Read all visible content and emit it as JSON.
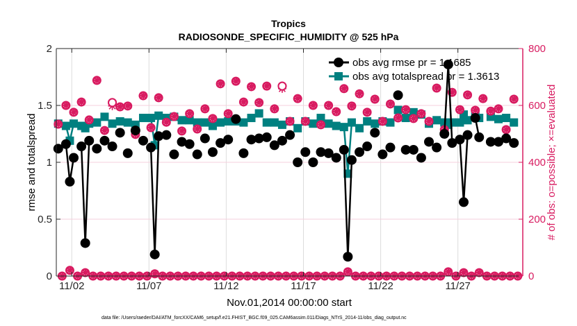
{
  "chart_data": {
    "type": "line",
    "title": "Tropics",
    "subtitle": "RADIOSONDE_SPECIFIC_HUMIDITY @ 525 hPa",
    "xlabel": "Nov.01,2014 00:00:00 start",
    "ylabel": "rmse and totalspread",
    "ylabel_right": "# of obs: o=possible; ×=evaluated",
    "footer": "data file: /Users/raeder/DAI/ATM_forcXX/CAM6_setup/f.e21.FHIST_BGC.f09_025.CAM6assim.011/Diags_NTrS_2014-11/obs_diag_output.nc",
    "xlim_days": [
      0,
      30.2
    ],
    "ylim": [
      0,
      2
    ],
    "ylim_right": [
      0,
      800
    ],
    "x_ticks": [
      {
        "day": 1,
        "label": "11/02"
      },
      {
        "day": 6,
        "label": "11/07"
      },
      {
        "day": 11,
        "label": "11/12"
      },
      {
        "day": 16,
        "label": "11/17"
      },
      {
        "day": 21,
        "label": "11/22"
      },
      {
        "day": 26,
        "label": "11/27"
      }
    ],
    "y_ticks": [
      {
        "v": 0,
        "label": "0"
      },
      {
        "v": 0.5,
        "label": "0.5"
      },
      {
        "v": 1,
        "label": "1"
      },
      {
        "v": 1.5,
        "label": "1.5"
      },
      {
        "v": 2,
        "label": "2"
      }
    ],
    "y_ticks_right": [
      {
        "v": 0,
        "label": "0"
      },
      {
        "v": 200,
        "label": "200"
      },
      {
        "v": 400,
        "label": "400"
      },
      {
        "v": 600,
        "label": "600"
      },
      {
        "v": 800,
        "label": "800"
      }
    ],
    "grid": true,
    "legend_placement": "top-right",
    "time_axis": {
      "first_bin_day": 0.125,
      "bin_width_days": 0.25
    },
    "colors": {
      "rmse": "#000000",
      "totalspread": "#008080",
      "counts": "#d81b60"
    },
    "series": [
      {
        "name": "obs avg rmse pr = 1.1685",
        "key": "rmse",
        "axis": "left",
        "marker": "circle",
        "values": [
          1.12,
          null,
          1.16,
          0.83,
          1.04,
          null,
          1.14,
          0.29,
          1.19,
          null,
          1.12,
          null,
          1.19,
          null,
          1.14,
          null,
          1.26,
          null,
          1.08,
          null,
          1.28,
          null,
          1.19,
          null,
          1.13,
          0.19,
          1.23,
          null,
          1.24,
          null,
          1.07,
          null,
          1.18,
          null,
          1.16,
          null,
          1.07,
          null,
          1.21,
          null,
          1.09,
          null,
          1.17,
          null,
          1.2,
          null,
          1.38,
          null,
          1.08,
          null,
          1.2,
          null,
          1.21,
          null,
          1.22,
          null,
          1.15,
          null,
          1.19,
          null,
          1.24,
          null,
          1.0,
          null,
          1.09,
          null,
          1.0,
          null,
          1.09,
          null,
          1.08,
          null,
          1.04,
          null,
          1.11,
          0.17,
          1.02,
          null,
          1.09,
          null,
          1.14,
          null,
          1.26,
          null,
          1.07,
          null,
          1.13,
          null,
          1.59,
          null,
          1.11,
          null,
          1.11,
          null,
          1.04,
          null,
          1.18,
          null,
          1.13,
          null,
          1.25,
          1.86,
          1.17,
          null,
          1.2,
          0.65,
          1.24,
          null,
          1.39,
          1.22,
          null,
          null,
          1.18,
          null,
          1.18,
          null,
          1.21,
          null,
          1.17,
          null
        ]
      },
      {
        "name": "obs avg totalspread pr = 1.3613",
        "key": "totalspread",
        "axis": "left",
        "marker": "square",
        "values": [
          1.34,
          null,
          1.32,
          1.19,
          1.34,
          null,
          1.32,
          1.3,
          1.34,
          null,
          1.35,
          null,
          1.4,
          null,
          1.34,
          null,
          1.36,
          null,
          1.35,
          null,
          1.33,
          null,
          1.39,
          null,
          1.39,
          1.15,
          1.41,
          null,
          1.39,
          null,
          1.4,
          null,
          1.37,
          null,
          1.37,
          null,
          1.35,
          null,
          1.35,
          null,
          1.32,
          null,
          1.35,
          null,
          1.36,
          null,
          1.36,
          null,
          1.35,
          null,
          1.39,
          null,
          1.43,
          null,
          1.35,
          null,
          1.35,
          null,
          1.33,
          null,
          1.36,
          null,
          1.3,
          null,
          1.36,
          null,
          1.34,
          null,
          1.39,
          null,
          1.34,
          null,
          1.32,
          null,
          1.31,
          0.9,
          1.35,
          null,
          1.3,
          null,
          1.36,
          null,
          1.34,
          null,
          1.36,
          null,
          1.35,
          null,
          1.46,
          null,
          1.39,
          null,
          1.44,
          null,
          1.42,
          null,
          1.34,
          null,
          1.37,
          null,
          1.35,
          1.33,
          1.35,
          null,
          1.35,
          1.42,
          1.37,
          null,
          1.44,
          1.39,
          null,
          null,
          1.4,
          null,
          1.38,
          null,
          1.39,
          null,
          1.35,
          null
        ]
      },
      {
        "name": "possible",
        "key": "possible",
        "axis": "right",
        "marker": "o",
        "values": [
          534,
          0,
          600,
          20,
          576,
          0,
          612,
          12,
          549,
          0,
          688,
          0,
          512,
          0,
          610,
          0,
          595,
          0,
          598,
          0,
          498,
          0,
          634,
          0,
          522,
          8,
          627,
          0,
          541,
          0,
          561,
          0,
          510,
          0,
          571,
          0,
          517,
          0,
          588,
          0,
          554,
          0,
          676,
          0,
          571,
          0,
          685,
          0,
          612,
          0,
          666,
          0,
          610,
          0,
          668,
          0,
          588,
          0,
          668,
          0,
          544,
          0,
          624,
          0,
          544,
          0,
          600,
          0,
          532,
          0,
          600,
          0,
          578,
          0,
          659,
          15,
          598,
          0,
          641,
          0,
          576,
          0,
          622,
          0,
          544,
          0,
          605,
          0,
          556,
          0,
          585,
          0,
          554,
          0,
          571,
          0,
          544,
          0,
          661,
          0,
          515,
          15,
          646,
          0,
          585,
          12,
          637,
          0,
          583,
          12,
          624,
          0,
          580,
          0,
          588,
          0,
          515,
          0,
          622,
          0
        ]
      },
      {
        "name": "evaluated",
        "key": "evaluated",
        "axis": "right",
        "marker": "x",
        "values": [
          534,
          0,
          600,
          20,
          576,
          0,
          612,
          12,
          549,
          0,
          688,
          0,
          512,
          0,
          598,
          0,
          595,
          0,
          598,
          0,
          498,
          0,
          634,
          0,
          522,
          8,
          627,
          0,
          541,
          0,
          561,
          0,
          510,
          0,
          571,
          0,
          517,
          0,
          588,
          0,
          554,
          0,
          676,
          0,
          571,
          0,
          685,
          0,
          612,
          0,
          666,
          0,
          610,
          0,
          668,
          0,
          588,
          0,
          659,
          0,
          544,
          0,
          624,
          0,
          544,
          0,
          600,
          0,
          532,
          0,
          600,
          0,
          578,
          0,
          659,
          15,
          598,
          0,
          641,
          0,
          576,
          0,
          622,
          0,
          544,
          0,
          605,
          0,
          556,
          0,
          585,
          0,
          554,
          0,
          571,
          0,
          544,
          0,
          661,
          0,
          515,
          15,
          646,
          0,
          585,
          12,
          637,
          0,
          583,
          12,
          624,
          0,
          580,
          0,
          588,
          0,
          515,
          0,
          622,
          0
        ]
      }
    ]
  }
}
